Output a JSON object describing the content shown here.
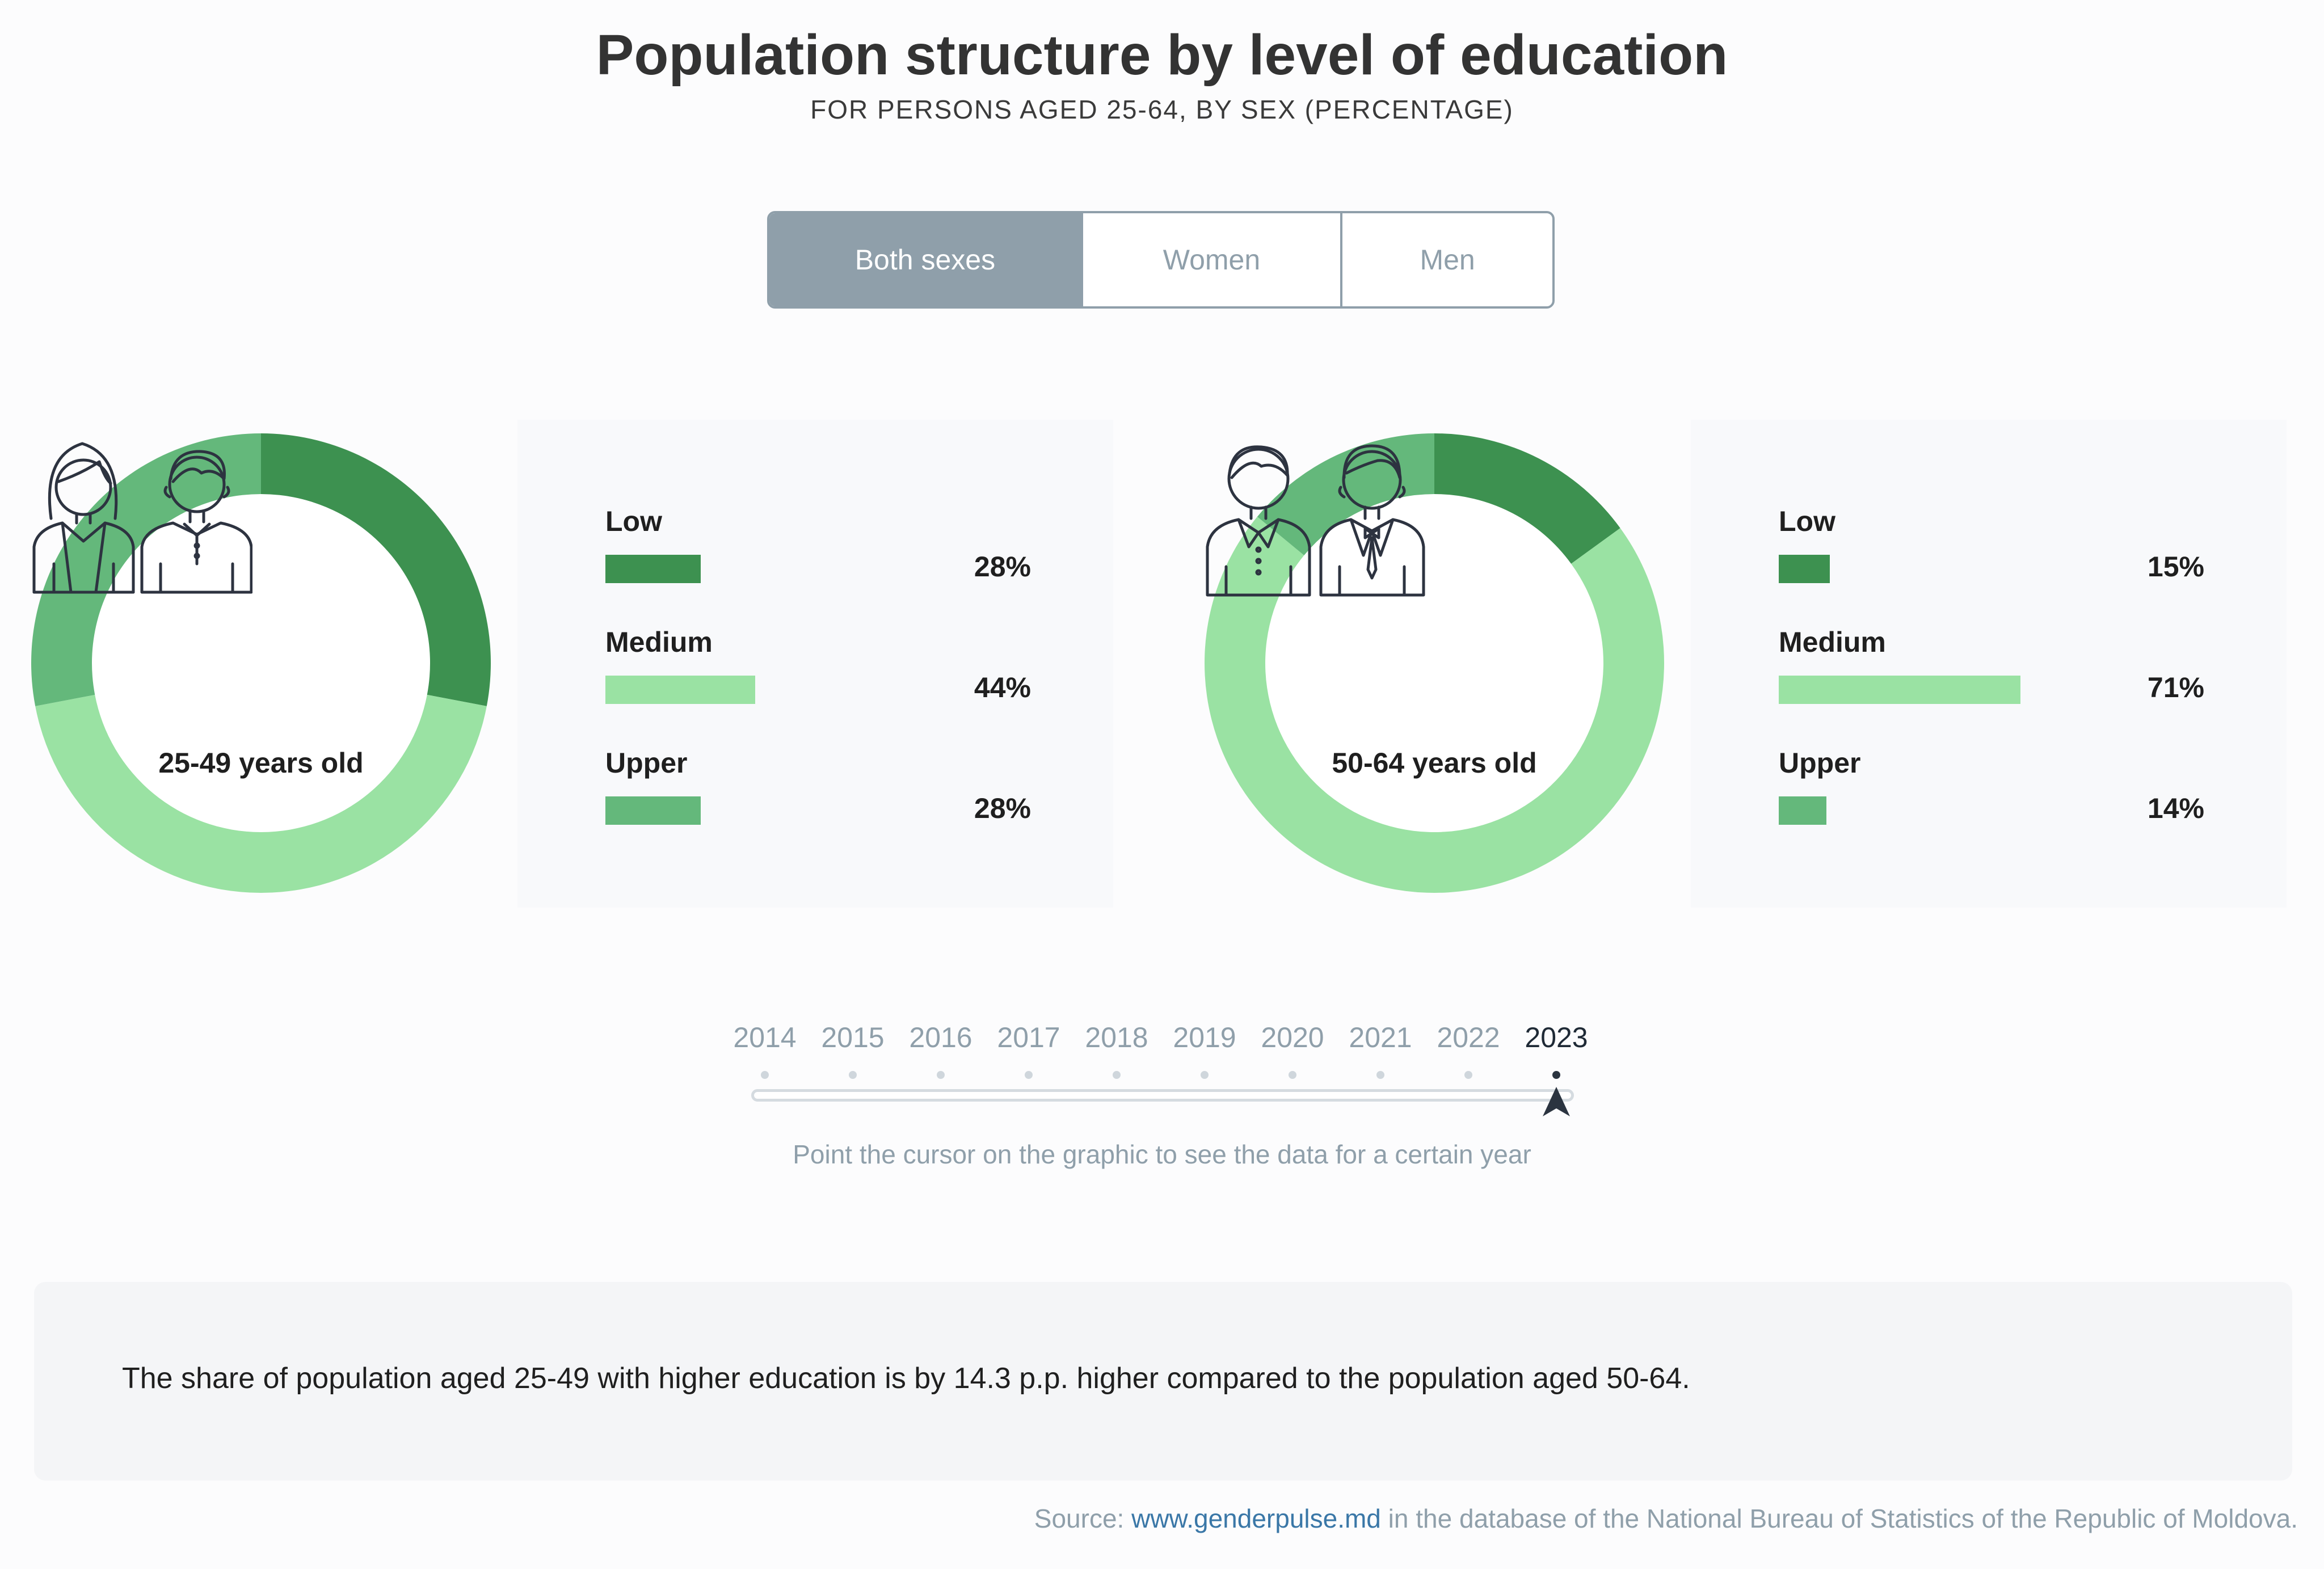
{
  "header": {
    "title": "Population structure by level of education",
    "subtitle": "FOR PERSONS AGED 25-64, BY SEX (PERCENTAGE)"
  },
  "toggle": {
    "options": [
      "Both sexes",
      "Women",
      "Men"
    ],
    "selected": "Both sexes"
  },
  "colors": {
    "low": "#3d9150",
    "medium": "#9ae2a3",
    "upper": "#64b87b"
  },
  "chart_data": [
    {
      "type": "pie",
      "label": "25-49 years old",
      "icon": "woman-and-man-casual-icon",
      "categories": [
        "Low",
        "Medium",
        "Upper"
      ],
      "values": [
        28,
        44,
        28
      ],
      "value_labels": [
        "28%",
        "44%",
        "28%"
      ]
    },
    {
      "type": "pie",
      "label": "50-64 years old",
      "icon": "two-men-in-suits-icon",
      "categories": [
        "Low",
        "Medium",
        "Upper"
      ],
      "values": [
        15,
        71,
        14
      ],
      "value_labels": [
        "15%",
        "71%",
        "14%"
      ]
    }
  ],
  "timeline": {
    "years": [
      "2014",
      "2015",
      "2016",
      "2017",
      "2018",
      "2019",
      "2020",
      "2021",
      "2022",
      "2023"
    ],
    "selected": "2023",
    "hint": "Point the cursor on the graphic to see the data for a certain year"
  },
  "note": {
    "text": "The share of population aged 25-49 with higher education is by 14.3 p.p. higher compared to the population aged 50-64."
  },
  "source": {
    "prefix": "Source: ",
    "link_text": "www.genderpulse.md",
    "suffix": " in the database of the National Bureau of Statistics of the Republic of Moldova."
  }
}
